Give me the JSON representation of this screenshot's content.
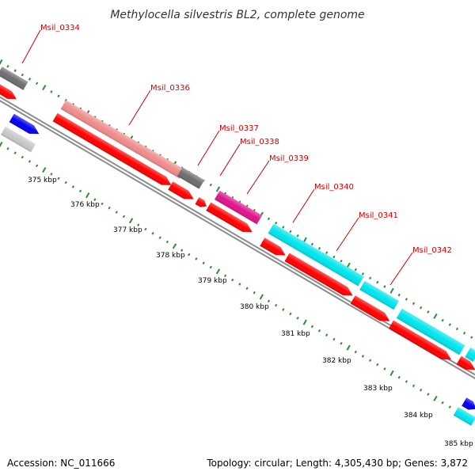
{
  "title": "Methylocella silvestris BL2, complete genome",
  "footer": {
    "accession": "Accession: NC_011666",
    "summary": "Topology: circular; Length: 4,305,430 bp; Genes: 3,872"
  },
  "colors": {
    "backbone": "#8c8c8c",
    "tick": "#2e8b2e",
    "label": "#cc0000",
    "gene_gray": "#6e6e6e",
    "gene_light_gray": "#c8c8c8",
    "gene_pink": "#f08c8c",
    "gene_magenta": "#e0148c",
    "gene_cyan": "#00e5ee",
    "gene_red": "#ff0000",
    "gene_blue": "#0000ee"
  },
  "gene_labels": [
    "Msil_0334",
    "Msil_0336",
    "Msil_0337",
    "Msil_0338",
    "Msil_0339",
    "Msil_0340",
    "Msil_0341",
    "Msil_0342"
  ],
  "tick_labels": [
    "375 kbp",
    "376 kbp",
    "377 kbp",
    "378 kbp",
    "379 kbp",
    "380 kbp",
    "381 kbp",
    "382 kbp",
    "383 kbp",
    "384 kbp",
    "385 kbp"
  ]
}
